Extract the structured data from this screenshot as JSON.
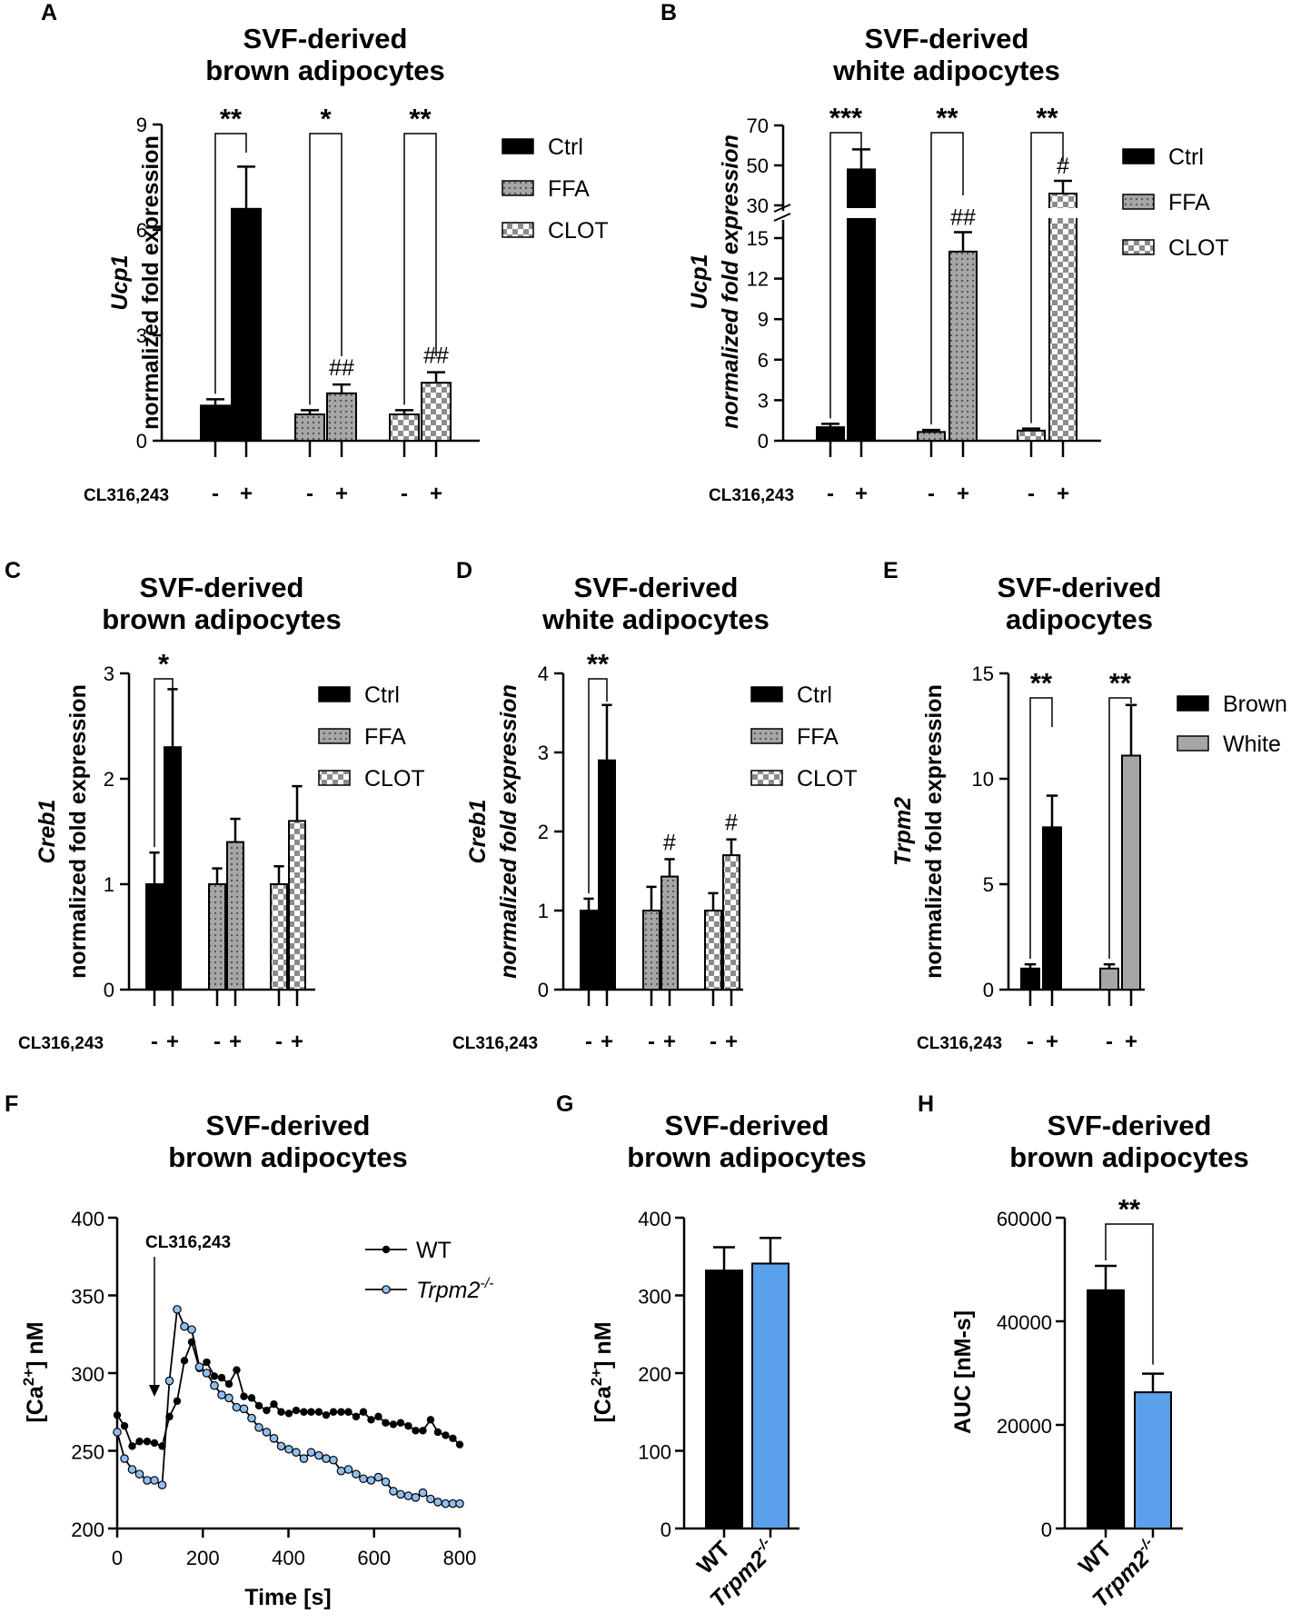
{
  "colors": {
    "ctrl": "#000000",
    "ffa_bg": "#a6a6a6",
    "dot": "#4d4d4d",
    "clot_dark": "#8c8c8c",
    "white_bar": "#a6a6a6",
    "ko_blue": "#5aa0eb",
    "ko_point": "#8fbff0"
  },
  "chart_data": [
    {
      "panel": "A",
      "type": "bar",
      "title": [
        "SVF-derived",
        "brown adipocytes"
      ],
      "ylabel_gene": "Ucp1",
      "ylabel": "normalized fold expression",
      "ylim": [
        0,
        9
      ],
      "yticks": [
        "0",
        "3",
        "6",
        "9"
      ],
      "treatment_label": "CL316,243",
      "treatment_signs": [
        "-",
        "+",
        "-",
        "+",
        "-",
        "+"
      ],
      "legend": [
        "Ctrl",
        "FFA",
        "CLOT"
      ],
      "bars": [
        {
          "group": "Ctrl",
          "cl": "-",
          "value": 1.0,
          "err": 0.18
        },
        {
          "group": "Ctrl",
          "cl": "+",
          "value": 6.6,
          "err": 1.2
        },
        {
          "group": "FFA",
          "cl": "-",
          "value": 0.75,
          "err": 0.12
        },
        {
          "group": "FFA",
          "cl": "+",
          "value": 1.35,
          "err": 0.25,
          "mark": "##"
        },
        {
          "group": "CLOT",
          "cl": "-",
          "value": 0.75,
          "err": 0.12
        },
        {
          "group": "CLOT",
          "cl": "+",
          "value": 1.65,
          "err": 0.3,
          "mark": "##"
        }
      ],
      "significance": [
        "**",
        "*",
        "**"
      ]
    },
    {
      "panel": "B",
      "type": "bar",
      "title": [
        "SVF-derived",
        "white adipocytes"
      ],
      "ylabel_gene": "Ucp1",
      "ylabel": "normalized fold expression",
      "ylim": [
        0,
        70
      ],
      "yticks": [
        "0",
        "3",
        "6",
        "9",
        "12",
        "15",
        "30",
        "50",
        "70"
      ],
      "axis_break": [
        15,
        30
      ],
      "treatment_label": "CL316,243",
      "treatment_signs": [
        "-",
        "+",
        "-",
        "+",
        "-",
        "+"
      ],
      "legend": [
        "Ctrl",
        "FFA",
        "CLOT"
      ],
      "bars": [
        {
          "group": "Ctrl",
          "cl": "-",
          "value": 1.0,
          "err": 0.25
        },
        {
          "group": "Ctrl",
          "cl": "+",
          "value": 48,
          "err": 10
        },
        {
          "group": "FFA",
          "cl": "-",
          "value": 0.65,
          "err": 0.15
        },
        {
          "group": "FFA",
          "cl": "+",
          "value": 14,
          "err": 2.6,
          "mark": "##"
        },
        {
          "group": "CLOT",
          "cl": "-",
          "value": 0.75,
          "err": 0.15
        },
        {
          "group": "CLOT",
          "cl": "+",
          "value": 35,
          "err": 7,
          "mark": "#"
        }
      ],
      "significance": [
        "***",
        "**",
        "**"
      ]
    },
    {
      "panel": "C",
      "type": "bar",
      "title": [
        "SVF-derived",
        "brown adipocytes"
      ],
      "ylabel_gene": "Creb1",
      "ylabel": "normalized  fold expression",
      "ylim": [
        0,
        3
      ],
      "yticks": [
        "0",
        "1",
        "2",
        "3"
      ],
      "treatment_label": "CL316,243",
      "treatment_signs": [
        "-",
        "+",
        "-",
        "+",
        "-",
        "+"
      ],
      "legend": [
        "Ctrl",
        "FFA",
        "CLOT"
      ],
      "bars": [
        {
          "group": "Ctrl",
          "cl": "-",
          "value": 1.0,
          "err": 0.3
        },
        {
          "group": "Ctrl",
          "cl": "+",
          "value": 2.3,
          "err": 0.55
        },
        {
          "group": "FFA",
          "cl": "-",
          "value": 1.0,
          "err": 0.15
        },
        {
          "group": "FFA",
          "cl": "+",
          "value": 1.4,
          "err": 0.22
        },
        {
          "group": "CLOT",
          "cl": "-",
          "value": 1.0,
          "err": 0.17
        },
        {
          "group": "CLOT",
          "cl": "+",
          "value": 1.6,
          "err": 0.33
        }
      ],
      "significance": [
        "*"
      ]
    },
    {
      "panel": "D",
      "type": "bar",
      "title": [
        "SVF-derived",
        "white adipocytes"
      ],
      "ylabel_gene": "Creb1",
      "ylabel": "normalized  fold expression",
      "ylim": [
        0,
        4
      ],
      "yticks": [
        "0",
        "1",
        "2",
        "3",
        "4"
      ],
      "treatment_label": "CL316,243",
      "treatment_signs": [
        "-",
        "+",
        "-",
        "+",
        "-",
        "+"
      ],
      "legend": [
        "Ctrl",
        "FFA",
        "CLOT"
      ],
      "bars": [
        {
          "group": "Ctrl",
          "cl": "-",
          "value": 1.0,
          "err": 0.15
        },
        {
          "group": "Ctrl",
          "cl": "+",
          "value": 2.9,
          "err": 0.7
        },
        {
          "group": "FFA",
          "cl": "-",
          "value": 1.0,
          "err": 0.3
        },
        {
          "group": "FFA",
          "cl": "+",
          "value": 1.43,
          "err": 0.22,
          "mark": "#"
        },
        {
          "group": "CLOT",
          "cl": "-",
          "value": 1.0,
          "err": 0.22
        },
        {
          "group": "CLOT",
          "cl": "+",
          "value": 1.7,
          "err": 0.2,
          "mark": "#"
        }
      ],
      "significance": [
        "**"
      ]
    },
    {
      "panel": "E",
      "type": "bar",
      "title": [
        "SVF-derived",
        "adipocytes"
      ],
      "ylabel_gene": "Trpm2",
      "ylabel": "normalized fold expression",
      "ylim": [
        0,
        15
      ],
      "yticks": [
        "0",
        "5",
        "10",
        "15"
      ],
      "treatment_label": "CL316,243",
      "treatment_signs": [
        "-",
        "+",
        "-",
        "+"
      ],
      "legend": [
        "Brown",
        "White"
      ],
      "bars": [
        {
          "group": "Brown",
          "cl": "-",
          "value": 1.0,
          "err": 0.2
        },
        {
          "group": "Brown",
          "cl": "+",
          "value": 7.7,
          "err": 1.5
        },
        {
          "group": "White",
          "cl": "-",
          "value": 1.0,
          "err": 0.2
        },
        {
          "group": "White",
          "cl": "+",
          "value": 11.1,
          "err": 2.4
        }
      ],
      "significance": [
        "**",
        "**"
      ]
    },
    {
      "panel": "F",
      "type": "line",
      "title": [
        "SVF-derived",
        "brown adipocytes"
      ],
      "xlabel": "Time [s]",
      "ylabel": "[Ca2+] nM",
      "xlim": [
        0,
        800
      ],
      "ylim": [
        200,
        400
      ],
      "xticks": [
        "0",
        "200",
        "400",
        "600",
        "800"
      ],
      "yticks": [
        "200",
        "250",
        "300",
        "350",
        "400"
      ],
      "annotation": {
        "text": "CL316,243",
        "x": 87
      },
      "x": [
        0,
        17,
        35,
        52,
        70,
        87,
        105,
        122,
        140,
        157,
        174,
        192,
        209,
        227,
        244,
        261,
        279,
        296,
        314,
        331,
        349,
        366,
        383,
        401,
        418,
        436,
        453,
        471,
        488,
        505,
        523,
        540,
        558,
        575,
        593,
        610,
        627,
        645,
        662,
        680,
        697,
        714,
        732,
        749,
        767,
        784,
        800
      ],
      "series": [
        {
          "name": "WT",
          "values": [
            273,
            266,
            253,
            256,
            256,
            255,
            253,
            272,
            282,
            308,
            320,
            303,
            307,
            298,
            297,
            293,
            302,
            285,
            284,
            279,
            276,
            280,
            275,
            274,
            276,
            275,
            275,
            275,
            273,
            275,
            275,
            275,
            272,
            275,
            270,
            272,
            268,
            267,
            268,
            266,
            263,
            263,
            270,
            262,
            260,
            258,
            254
          ]
        },
        {
          "name": "Trpm2",
          "sup": "-/-",
          "values": [
            262,
            245,
            238,
            235,
            231,
            231,
            228,
            295,
            341,
            330,
            328,
            304,
            300,
            292,
            286,
            284,
            278,
            277,
            271,
            265,
            262,
            258,
            253,
            251,
            249,
            245,
            249,
            247,
            245,
            244,
            237,
            238,
            235,
            232,
            231,
            233,
            230,
            224,
            222,
            221,
            220,
            223,
            219,
            217,
            216,
            216,
            216
          ]
        }
      ]
    },
    {
      "panel": "G",
      "type": "bar",
      "title": [
        "SVF-derived",
        "brown adipocytes"
      ],
      "ylabel": "[Ca2+] nM",
      "ylim": [
        0,
        400
      ],
      "yticks": [
        "0",
        "100",
        "200",
        "300",
        "400"
      ],
      "categories": [
        "WT",
        "Trpm2"
      ],
      "sup": "-/-",
      "values": [
        332,
        341
      ],
      "errors": [
        30,
        33
      ]
    },
    {
      "panel": "H",
      "type": "bar",
      "title": [
        "SVF-derived",
        "brown adipocytes"
      ],
      "ylabel": "AUC [nM-s]",
      "ylim": [
        0,
        60000
      ],
      "yticks": [
        "0",
        "20000",
        "40000",
        "60000"
      ],
      "categories": [
        "WT",
        "Trpm2"
      ],
      "sup": "-/-",
      "values": [
        46000,
        26300
      ],
      "errors": [
        4700,
        3600
      ],
      "significance": [
        "**"
      ]
    }
  ]
}
